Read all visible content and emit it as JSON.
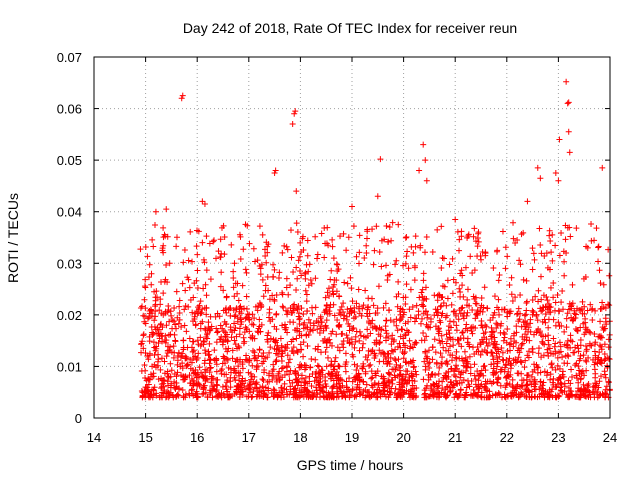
{
  "chart_data": {
    "type": "scatter",
    "title": "Day 242 of 2018, Rate Of TEC Index for receiver reun",
    "xlabel": "GPS time / hours",
    "ylabel": "ROTI / TECUs",
    "xlim": [
      14,
      24
    ],
    "ylim": [
      0,
      0.07
    ],
    "x_ticks": [
      "14",
      "15",
      "16",
      "17",
      "18",
      "19",
      "20",
      "21",
      "22",
      "23",
      "24"
    ],
    "y_ticks": [
      "0",
      "0.01",
      "0.02",
      "0.03",
      "0.04",
      "0.05",
      "0.06",
      "0.07"
    ],
    "grid": true,
    "marker": "+",
    "color": "#ff0000",
    "series": [
      {
        "name": "ROTI",
        "data_range_x": [
          14.9,
          24.0
        ],
        "typical_range_y": [
          0.004,
          0.03
        ],
        "highlight_points": [
          [
            15.7,
            0.062
          ],
          [
            15.72,
            0.0625
          ],
          [
            17.5,
            0.0475
          ],
          [
            17.52,
            0.048
          ],
          [
            17.85,
            0.057
          ],
          [
            17.88,
            0.059
          ],
          [
            17.9,
            0.0595
          ],
          [
            17.92,
            0.044
          ],
          [
            19.55,
            0.0502
          ],
          [
            20.3,
            0.048
          ],
          [
            20.38,
            0.053
          ],
          [
            20.42,
            0.05
          ],
          [
            20.45,
            0.046
          ],
          [
            22.6,
            0.0485
          ],
          [
            22.65,
            0.0465
          ],
          [
            22.95,
            0.0475
          ],
          [
            23.0,
            0.046
          ],
          [
            23.02,
            0.054
          ],
          [
            23.15,
            0.0652
          ],
          [
            23.18,
            0.061
          ],
          [
            23.2,
            0.0612
          ],
          [
            23.2,
            0.0555
          ],
          [
            23.22,
            0.0515
          ],
          [
            23.85,
            0.0485
          ],
          [
            16.1,
            0.042
          ],
          [
            16.15,
            0.0415
          ],
          [
            15.2,
            0.04
          ],
          [
            15.4,
            0.0405
          ],
          [
            19.0,
            0.041
          ],
          [
            19.5,
            0.043
          ],
          [
            21.0,
            0.0385
          ],
          [
            22.4,
            0.042
          ]
        ]
      }
    ]
  }
}
